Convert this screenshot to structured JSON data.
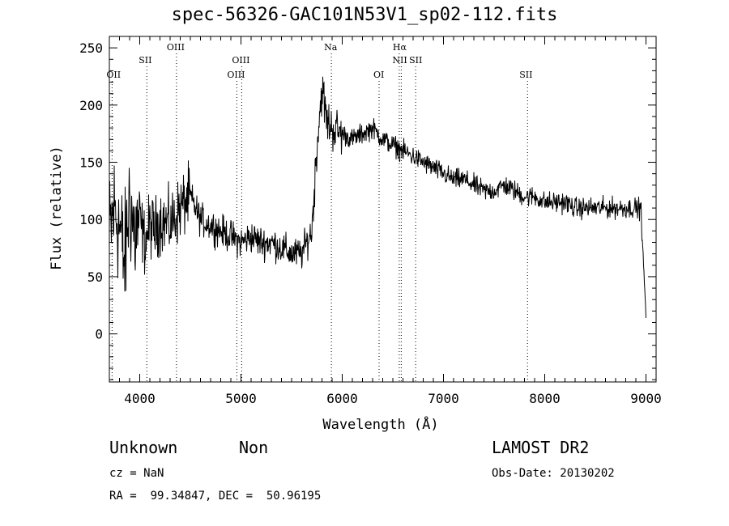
{
  "chart_data": {
    "type": "line",
    "title": "spec-56326-GAC101N53V1_sp02-112.fits",
    "xlabel": "Wavelength (Å)",
    "ylabel": "Flux (relative)",
    "xlim": [
      3700,
      9100
    ],
    "ylim": [
      -42,
      260
    ],
    "x_ticks": [
      4000,
      5000,
      6000,
      7000,
      8000,
      9000
    ],
    "y_ticks": [
      0,
      50,
      100,
      150,
      200,
      250
    ],
    "grid": false,
    "line_color": "#000000",
    "marker_color": "#000000",
    "series": [
      {
        "x": [
          3700,
          3750,
          3800,
          3850,
          3900,
          3950,
          4000,
          4050,
          4100,
          4150,
          4200,
          4300,
          4400,
          4500,
          4600,
          4700,
          4800,
          4900,
          5000,
          5100,
          5200,
          5300,
          5400,
          5500,
          5600,
          5700,
          5750,
          5800,
          5850,
          5900,
          6000,
          6100,
          6200,
          6300,
          6400,
          6500,
          6600,
          6700,
          6800,
          6900,
          7000,
          7100,
          7200,
          7300,
          7400,
          7500,
          7600,
          7700,
          7800,
          7900,
          8000,
          8100,
          8200,
          8300,
          8400,
          8500,
          8600,
          8700,
          8800,
          8900,
          8950,
          9000
        ],
        "y": [
          85,
          110,
          95,
          60,
          120,
          85,
          100,
          80,
          95,
          90,
          100,
          95,
          110,
          120,
          100,
          95,
          90,
          85,
          80,
          85,
          80,
          80,
          75,
          70,
          70,
          90,
          165,
          215,
          185,
          180,
          175,
          170,
          175,
          180,
          170,
          165,
          160,
          155,
          150,
          145,
          140,
          135,
          135,
          130,
          125,
          125,
          130,
          125,
          120,
          120,
          115,
          115,
          115,
          110,
          110,
          110,
          110,
          110,
          110,
          110,
          110,
          15
        ]
      }
    ],
    "line_markers": [
      {
        "label": "OII",
        "x": 3727
      },
      {
        "label": "SII",
        "x": 4070
      },
      {
        "label": "OIII",
        "x": 4363
      },
      {
        "label": "OIII",
        "x": 4959
      },
      {
        "label": "OIII",
        "x": 5007
      },
      {
        "label": "Na",
        "x": 5893
      },
      {
        "label": "OI",
        "x": 6364
      },
      {
        "label": "Hα",
        "x": 6563
      },
      {
        "label": "NII",
        "x": 6583
      },
      {
        "label": "SII",
        "x": 6725
      },
      {
        "label": "SII",
        "x": 7830
      }
    ]
  },
  "info": {
    "class_label": "Unknown",
    "subclass_label": "Non",
    "cz_label": "cz = NaN",
    "coords_label": "RA =  99.34847, DEC =  50.96195",
    "survey_label": "LAMOST DR2",
    "obs_date_label": "Obs-Date: 20130202"
  }
}
